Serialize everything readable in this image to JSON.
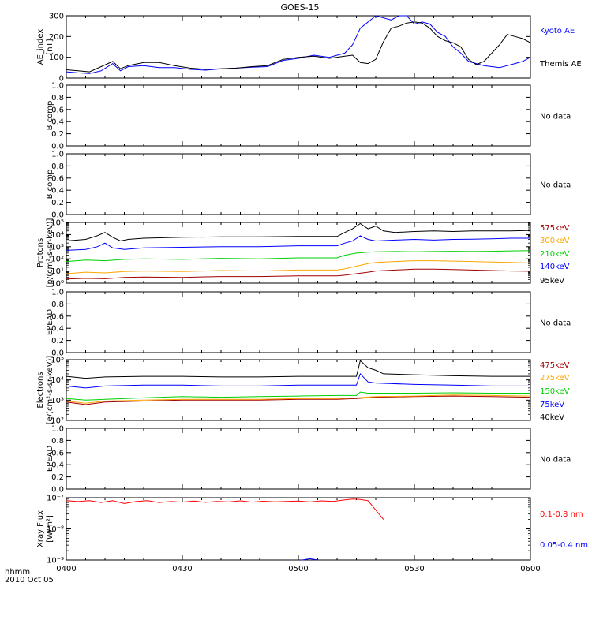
{
  "title": "GOES-15",
  "time_axis": {
    "ticks": [
      "0400",
      "0430",
      "0500",
      "0530",
      "0600"
    ],
    "corner_label": "hhmm",
    "date_label": "2010 Oct 05"
  },
  "colors": {
    "black": "#000000",
    "blue": "#0000ff",
    "green": "#00d000",
    "orange": "#ffa500",
    "dark_red": "#a00000",
    "red": "#ff0000"
  },
  "chart_data": [
    {
      "type": "line",
      "panel": "ae",
      "ylabel_lines": [
        "AE_index",
        "[nT]"
      ],
      "scale": "linear",
      "ylim": [
        0,
        300
      ],
      "yticks": [
        "0",
        "100",
        "200",
        "300"
      ],
      "x_unit": "minutes",
      "series": [
        {
          "name": "Kyoto AE",
          "color": "#0000ff",
          "x": [
            0,
            3,
            6,
            9,
            12,
            14,
            16,
            20,
            24,
            28,
            32,
            36,
            40,
            44,
            48,
            52,
            56,
            60,
            64,
            68,
            72,
            74,
            76,
            80,
            84,
            86,
            88,
            90,
            92,
            94,
            96,
            98,
            100,
            102,
            104,
            106,
            108,
            110,
            112,
            114,
            116,
            118,
            120
          ],
          "y": [
            30,
            25,
            22,
            35,
            70,
            35,
            55,
            60,
            50,
            50,
            42,
            38,
            45,
            48,
            52,
            55,
            85,
            95,
            110,
            100,
            120,
            160,
            240,
            300,
            280,
            305,
            300,
            260,
            270,
            260,
            220,
            200,
            150,
            120,
            80,
            70,
            60,
            55,
            50,
            60,
            70,
            80,
            100
          ]
        },
        {
          "name": "Themis AE",
          "color": "#000000",
          "x": [
            0,
            3,
            6,
            9,
            12,
            14,
            16,
            20,
            24,
            28,
            32,
            36,
            40,
            44,
            48,
            52,
            56,
            60,
            64,
            68,
            72,
            74,
            76,
            78,
            80,
            82,
            84,
            86,
            88,
            90,
            92,
            94,
            96,
            98,
            100,
            102,
            104,
            106,
            108,
            110,
            112,
            114,
            116,
            118,
            120
          ],
          "y": [
            40,
            35,
            30,
            55,
            80,
            45,
            60,
            75,
            75,
            60,
            48,
            42,
            45,
            48,
            55,
            60,
            90,
            100,
            105,
            95,
            105,
            110,
            75,
            70,
            90,
            175,
            240,
            250,
            265,
            270,
            265,
            240,
            200,
            180,
            170,
            150,
            90,
            65,
            80,
            120,
            160,
            210,
            200,
            190,
            170
          ]
        }
      ]
    },
    {
      "type": "line",
      "panel": "b1",
      "ylabel_lines": [
        "B comp"
      ],
      "scale": "linear",
      "ylim": [
        0,
        1
      ],
      "yticks": [
        "0.0",
        "0.2",
        "0.4",
        "0.6",
        "0.8",
        "1.0"
      ],
      "legend_text": [
        "No data"
      ],
      "series": []
    },
    {
      "type": "line",
      "panel": "b2",
      "ylabel_lines": [
        "B comp"
      ],
      "scale": "linear",
      "ylim": [
        0,
        1
      ],
      "yticks": [
        "0.0",
        "0.2",
        "0.4",
        "0.6",
        "0.8",
        "1.0"
      ],
      "legend_text": [
        "No data"
      ],
      "series": []
    },
    {
      "type": "line",
      "panel": "protons",
      "ylabel_lines": [
        "Protons",
        "[p/(cm²-s-sr-keV)]"
      ],
      "scale": "log",
      "ylim": [
        1,
        100000
      ],
      "yticks": [
        "10⁰",
        "10¹",
        "10²",
        "10³",
        "10⁴",
        "10⁵"
      ],
      "x_unit": "minutes",
      "series": [
        {
          "name": "575keV",
          "color": "#a00000",
          "x": [
            0,
            5,
            10,
            15,
            20,
            30,
            40,
            50,
            60,
            70,
            72,
            75,
            78,
            80,
            85,
            90,
            95,
            100,
            105,
            110,
            115,
            120
          ],
          "y": [
            2.2,
            2.5,
            2.3,
            3,
            3.2,
            3,
            3.5,
            3.5,
            4,
            4,
            4.5,
            6,
            8,
            10,
            12,
            14,
            14,
            13,
            12,
            11,
            10,
            9.5
          ]
        },
        {
          "name": "300keV",
          "color": "#ffa500",
          "x": [
            0,
            5,
            10,
            15,
            20,
            30,
            40,
            50,
            60,
            70,
            72,
            75,
            78,
            80,
            85,
            90,
            95,
            100,
            105,
            110,
            115,
            120
          ],
          "y": [
            6,
            8,
            7,
            9,
            10,
            9,
            11,
            10,
            12,
            12,
            15,
            25,
            40,
            50,
            60,
            70,
            70,
            65,
            60,
            55,
            50,
            45
          ]
        },
        {
          "name": "210keV",
          "color": "#00d000",
          "x": [
            0,
            5,
            10,
            15,
            20,
            30,
            40,
            50,
            60,
            70,
            72,
            75,
            78,
            80,
            85,
            90,
            95,
            100,
            105,
            110,
            115,
            120
          ],
          "y": [
            60,
            80,
            70,
            90,
            100,
            90,
            110,
            100,
            120,
            120,
            200,
            300,
            350,
            380,
            400,
            380,
            400,
            420,
            400,
            420,
            450,
            470
          ]
        },
        {
          "name": "140keV",
          "color": "#0000ff",
          "x": [
            0,
            5,
            8,
            10,
            12,
            15,
            20,
            30,
            40,
            50,
            60,
            70,
            72,
            74,
            76,
            78,
            80,
            85,
            90,
            95,
            100,
            105,
            110,
            115,
            120
          ],
          "y": [
            500,
            600,
            1000,
            2000,
            800,
            600,
            800,
            900,
            1000,
            1000,
            1200,
            1200,
            2000,
            3000,
            8000,
            4000,
            3000,
            3500,
            4000,
            3500,
            4000,
            4200,
            4500,
            5000,
            5000
          ]
        },
        {
          "name": "95keV",
          "color": "#000000",
          "x": [
            0,
            5,
            8,
            10,
            12,
            14,
            16,
            20,
            30,
            40,
            50,
            60,
            70,
            72,
            74,
            76,
            78,
            80,
            82,
            85,
            90,
            95,
            100,
            105,
            110,
            115,
            120
          ],
          "y": [
            3000,
            4000,
            8000,
            15000,
            6000,
            3000,
            4000,
            5000,
            6000,
            6500,
            6500,
            7000,
            7000,
            15000,
            30000,
            80000,
            30000,
            50000,
            20000,
            15000,
            18000,
            20000,
            18000,
            20000,
            20000,
            20000,
            22000
          ]
        }
      ],
      "legend_order": [
        "575keV",
        "300keV",
        "210keV",
        "140keV",
        "95keV"
      ]
    },
    {
      "type": "line",
      "panel": "epead1",
      "ylabel_lines": [
        "EPEAD"
      ],
      "scale": "linear",
      "ylim": [
        0,
        1
      ],
      "yticks": [
        "0.0",
        "0.2",
        "0.4",
        "0.6",
        "0.8",
        "1.0"
      ],
      "legend_text": [
        "No data"
      ],
      "series": []
    },
    {
      "type": "line",
      "panel": "electrons",
      "ylabel_lines": [
        "Electrons",
        "[e/(cm²-s-sr-keV)]"
      ],
      "scale": "log",
      "ylim": [
        100,
        100000
      ],
      "yticks": [
        "10²",
        "10³",
        "10⁴",
        "10⁵"
      ],
      "x_unit": "minutes",
      "series": [
        {
          "name": "475keV",
          "color": "#a00000",
          "x": [
            0,
            5,
            10,
            20,
            30,
            40,
            50,
            60,
            70,
            75,
            80,
            90,
            100,
            110,
            120
          ],
          "y": [
            800,
            600,
            800,
            900,
            1000,
            1000,
            1000,
            1100,
            1100,
            1200,
            1400,
            1500,
            1600,
            1500,
            1400
          ]
        },
        {
          "name": "275keV",
          "color": "#ffa500",
          "x": [
            0,
            5,
            10,
            20,
            30,
            40,
            50,
            60,
            70,
            75,
            80,
            90,
            100,
            110,
            120
          ],
          "y": [
            900,
            700,
            900,
            1000,
            1100,
            1100,
            1100,
            1200,
            1200,
            1300,
            1500,
            1600,
            1800,
            1700,
            1600
          ]
        },
        {
          "name": "150keV",
          "color": "#00d000",
          "x": [
            0,
            5,
            10,
            20,
            30,
            40,
            50,
            60,
            70,
            75,
            76,
            78,
            80,
            90,
            100,
            110,
            120
          ],
          "y": [
            1200,
            1000,
            1100,
            1300,
            1500,
            1400,
            1500,
            1600,
            1700,
            1700,
            2500,
            2200,
            2200,
            2200,
            2300,
            2200,
            2200
          ]
        },
        {
          "name": "75keV",
          "color": "#0000ff",
          "x": [
            0,
            5,
            10,
            20,
            30,
            40,
            50,
            60,
            70,
            75,
            76,
            78,
            80,
            90,
            100,
            110,
            120
          ],
          "y": [
            5000,
            4000,
            5000,
            5500,
            5500,
            5000,
            5000,
            5500,
            5500,
            5500,
            20000,
            8000,
            7000,
            6000,
            5500,
            5000,
            5000
          ]
        },
        {
          "name": "40keV",
          "color": "#000000",
          "x": [
            0,
            5,
            10,
            20,
            30,
            40,
            50,
            60,
            70,
            75,
            76,
            78,
            80,
            82,
            90,
            100,
            110,
            120
          ],
          "y": [
            15000,
            12000,
            14000,
            15000,
            15000,
            14000,
            14000,
            15000,
            15000,
            15000,
            90000,
            40000,
            30000,
            20000,
            18000,
            16000,
            15000,
            15000
          ]
        }
      ],
      "legend_order": [
        "475keV",
        "275keV",
        "150keV",
        "75keV",
        "40keV"
      ]
    },
    {
      "type": "line",
      "panel": "epead2",
      "ylabel_lines": [
        "EPEAD"
      ],
      "scale": "linear",
      "ylim": [
        0,
        1
      ],
      "yticks": [
        "0.0",
        "0.2",
        "0.4",
        "0.6",
        "0.8",
        "1.0"
      ],
      "legend_text": [
        "No data"
      ],
      "series": []
    },
    {
      "type": "line",
      "panel": "xray",
      "ylabel_lines": [
        "Xray Flux",
        "[W/m²]"
      ],
      "scale": "log",
      "ylim": [
        1e-09,
        1e-07
      ],
      "yticks": [
        "10⁻⁹",
        "10⁻⁸",
        "10⁻⁷"
      ],
      "x_unit": "minutes",
      "series": [
        {
          "name": "0.1-0.8 nm",
          "color": "#ff0000",
          "x": [
            0,
            3,
            6,
            9,
            12,
            15,
            18,
            21,
            24,
            27,
            30,
            33,
            36,
            39,
            42,
            45,
            48,
            51,
            54,
            57,
            60,
            63,
            66,
            69,
            72,
            74,
            76,
            78,
            80,
            82
          ],
          "y": [
            8e-08,
            7.5e-08,
            8e-08,
            7e-08,
            8e-08,
            6.5e-08,
            7.5e-08,
            8e-08,
            7e-08,
            7.5e-08,
            7.2e-08,
            7.8e-08,
            7.1e-08,
            7.6e-08,
            7.3e-08,
            7.9e-08,
            7.2e-08,
            7.7e-08,
            7.4e-08,
            7.6e-08,
            7.8e-08,
            7.3e-08,
            7.9e-08,
            7.6e-08,
            8.5e-08,
            9e-08,
            8.8e-08,
            8e-08,
            4e-08,
            2e-08
          ]
        },
        {
          "name": "0.05-0.4 nm",
          "color": "#0000ff",
          "x": [
            61,
            63,
            65
          ],
          "y": [
            9.5e-10,
            1.1e-09,
            9.5e-10
          ]
        }
      ],
      "legend_order": [
        "0.1-0.8 nm",
        "0.05-0.4 nm"
      ]
    }
  ]
}
